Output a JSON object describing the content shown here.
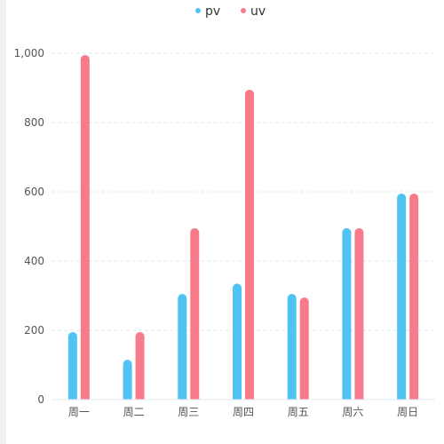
{
  "chart_data": {
    "type": "bar",
    "categories": [
      "周一",
      "周二",
      "周三",
      "周四",
      "周五",
      "周六",
      "周日"
    ],
    "series": [
      {
        "name": "pv",
        "values": [
          195,
          115,
          305,
          335,
          305,
          495,
          595
        ]
      },
      {
        "name": "uv",
        "values": [
          995,
          195,
          495,
          895,
          295,
          495,
          595
        ]
      }
    ],
    "ylim": [
      0,
      1000
    ],
    "yticks": [
      0,
      200,
      400,
      600,
      800,
      1000
    ],
    "ytick_labels": [
      "0",
      "200",
      "400",
      "600",
      "800",
      "1,000"
    ],
    "xlabel": "",
    "ylabel": "",
    "grid": true,
    "legend_position": "top-center",
    "colors": {
      "pv": "#4fc3f2",
      "uv": "#f87b8c",
      "grid": "#dce8f2",
      "axis_text": "#555555"
    }
  }
}
